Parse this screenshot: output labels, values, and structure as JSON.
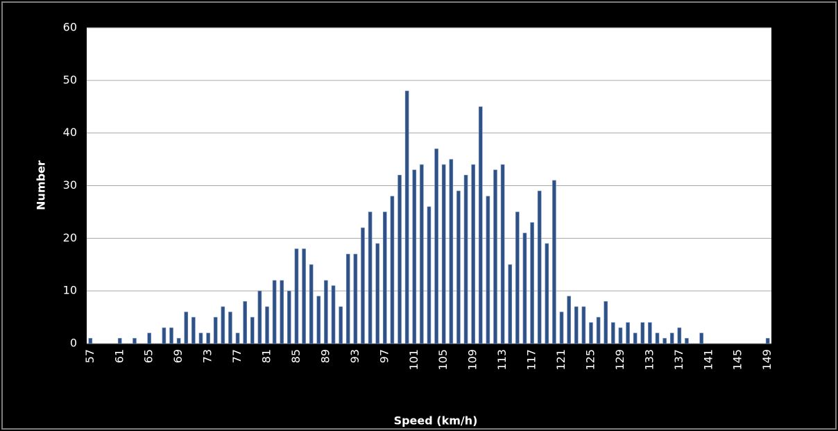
{
  "chart_data": {
    "type": "bar",
    "x_label": "Speed (km/h)",
    "y_label": "Number",
    "categories": [
      "57",
      null,
      null,
      null,
      "61",
      null,
      null,
      null,
      "65",
      null,
      null,
      null,
      "69",
      null,
      null,
      null,
      "73",
      null,
      null,
      null,
      "77",
      null,
      null,
      null,
      "81",
      null,
      null,
      null,
      "85",
      null,
      null,
      null,
      "89",
      null,
      null,
      null,
      "93",
      null,
      null,
      null,
      "97",
      null,
      null,
      null,
      "101",
      null,
      null,
      null,
      "105",
      null,
      null,
      null,
      "109",
      null,
      null,
      null,
      "113",
      null,
      null,
      null,
      "117",
      null,
      null,
      null,
      "121",
      null,
      null,
      null,
      "125",
      null,
      null,
      null,
      "129",
      null,
      null,
      null,
      "133",
      null,
      null,
      null,
      "137",
      null,
      null,
      null,
      "141",
      null,
      null,
      null,
      "145",
      null,
      null,
      null,
      "149"
    ],
    "values": [
      1,
      0,
      0,
      0,
      1,
      0,
      1,
      0,
      2,
      0,
      3,
      3,
      1,
      6,
      5,
      2,
      2,
      5,
      7,
      6,
      2,
      8,
      5,
      10,
      7,
      12,
      12,
      10,
      18,
      18,
      15,
      9,
      12,
      11,
      7,
      17,
      17,
      22,
      25,
      19,
      25,
      28,
      32,
      48,
      33,
      34,
      26,
      37,
      34,
      35,
      29,
      32,
      34,
      45,
      28,
      33,
      34,
      15,
      25,
      21,
      23,
      29,
      19,
      31,
      6,
      9,
      7,
      7,
      4,
      5,
      8,
      4,
      3,
      4,
      2,
      4,
      4,
      2,
      1,
      2,
      3,
      1,
      0,
      2,
      0,
      0,
      0,
      0,
      0,
      0,
      0,
      0,
      1
    ],
    "color": "#2f5185",
    "ylim": [
      0,
      60
    ],
    "yticks": [
      0,
      10,
      20,
      30,
      40,
      50,
      60
    ],
    "grid": true
  }
}
